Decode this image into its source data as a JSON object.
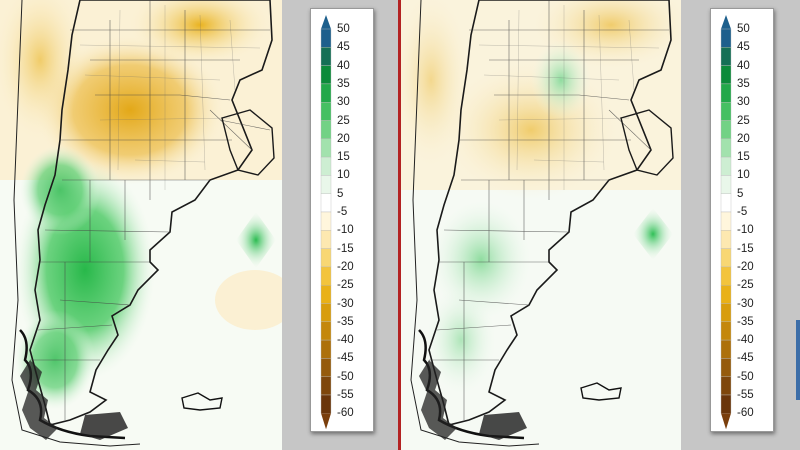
{
  "legend": {
    "labels": [
      "50",
      "45",
      "40",
      "35",
      "30",
      "25",
      "20",
      "15",
      "10",
      "5",
      "-5",
      "-10",
      "-15",
      "-20",
      "-25",
      "-30",
      "-35",
      "-40",
      "-45",
      "-50",
      "-55",
      "-60"
    ],
    "colors": [
      "#1d5f8c",
      "#156f55",
      "#0c8a3a",
      "#22a84a",
      "#45c062",
      "#72d285",
      "#a2e2ad",
      "#cdeed2",
      "#e9f7ea",
      "#ffffff",
      "#fff6dc",
      "#fde8b0",
      "#f8d774",
      "#f3c43c",
      "#e9b118",
      "#d89d0e",
      "#c4870c",
      "#ad700b",
      "#955a0b",
      "#7e460b",
      "#6a350a"
    ],
    "top_arrow_color": "#1d5f8c",
    "bottom_arrow_color": "#7a3e0c"
  },
  "maps": {
    "left": {
      "description_colors": {
        "anomaly_negative": "#e8b424",
        "anomaly_positive": "#2fbf56"
      }
    },
    "right": {
      "description_colors": {
        "anomaly_negative": "#f0cf78",
        "anomaly_positive": "#8fdc9f"
      }
    }
  }
}
